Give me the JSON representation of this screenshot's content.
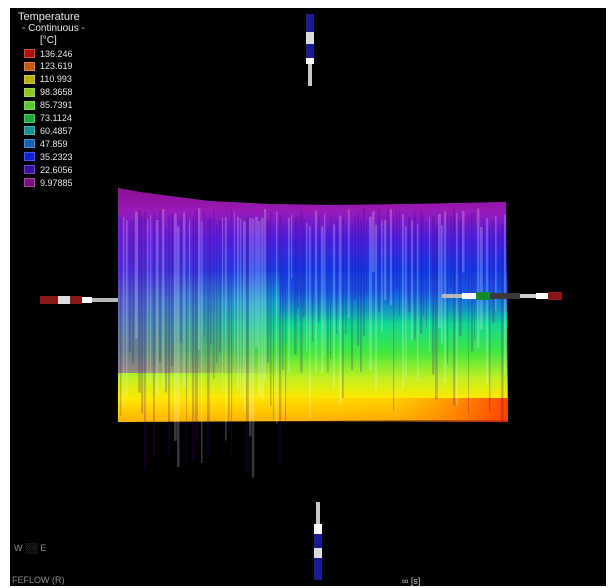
{
  "legend": {
    "title": "Temperature",
    "subtitle": "- Continuous -",
    "unit": "[°C]",
    "entries": [
      {
        "value": "136.246",
        "color": "#b01010"
      },
      {
        "value": "123.619",
        "color": "#c05a10"
      },
      {
        "value": "110.993",
        "color": "#b8b010"
      },
      {
        "value": "98.3658",
        "color": "#90c820"
      },
      {
        "value": "85.7391",
        "color": "#5ac830"
      },
      {
        "value": "73.1124",
        "color": "#20a840"
      },
      {
        "value": "60.4857",
        "color": "#1a9090"
      },
      {
        "value": "47.859",
        "color": "#1a60b0"
      },
      {
        "value": "35.2323",
        "color": "#1020d0"
      },
      {
        "value": "22.6056",
        "color": "#3a10a0"
      },
      {
        "value": "9.97885",
        "color": "#7a107a"
      }
    ]
  },
  "view": {
    "axis_label": "W ░░ E",
    "software_label": "FEFLOW (R)",
    "time_label": "∞ [s]"
  }
}
